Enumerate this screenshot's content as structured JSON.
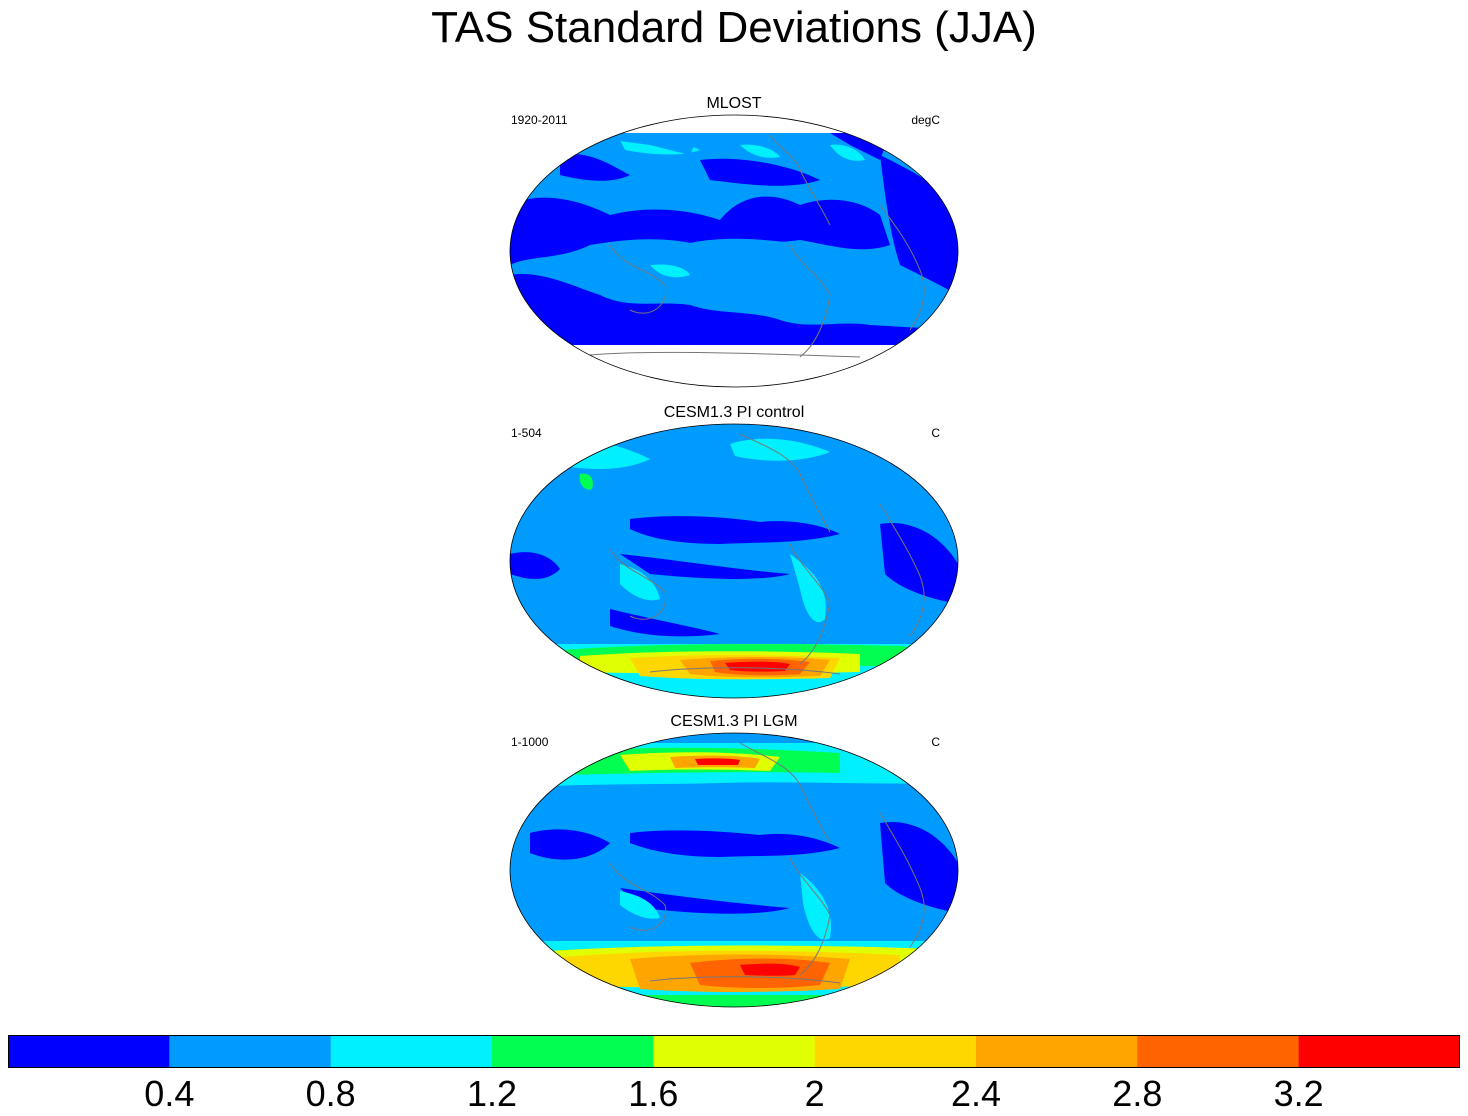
{
  "title": "TAS Standard Deviations (JJA)",
  "panels": [
    {
      "title": "MLOST",
      "left": "1920-2011",
      "right": "degC"
    },
    {
      "title": "CESM1.3 PI control",
      "left": "1-504",
      "right": "C"
    },
    {
      "title": "CESM1.3 PI LGM",
      "left": "1-1000",
      "right": "C"
    }
  ],
  "colorbar": {
    "colors": [
      "#0000ff",
      "#009bff",
      "#00f0ff",
      "#00ff50",
      "#e0ff00",
      "#ffd700",
      "#ffa500",
      "#ff6400",
      "#ff0000"
    ],
    "labels": [
      "0.4",
      "0.8",
      "1.2",
      "1.6",
      "2",
      "2.4",
      "2.8",
      "3.2"
    ]
  }
}
